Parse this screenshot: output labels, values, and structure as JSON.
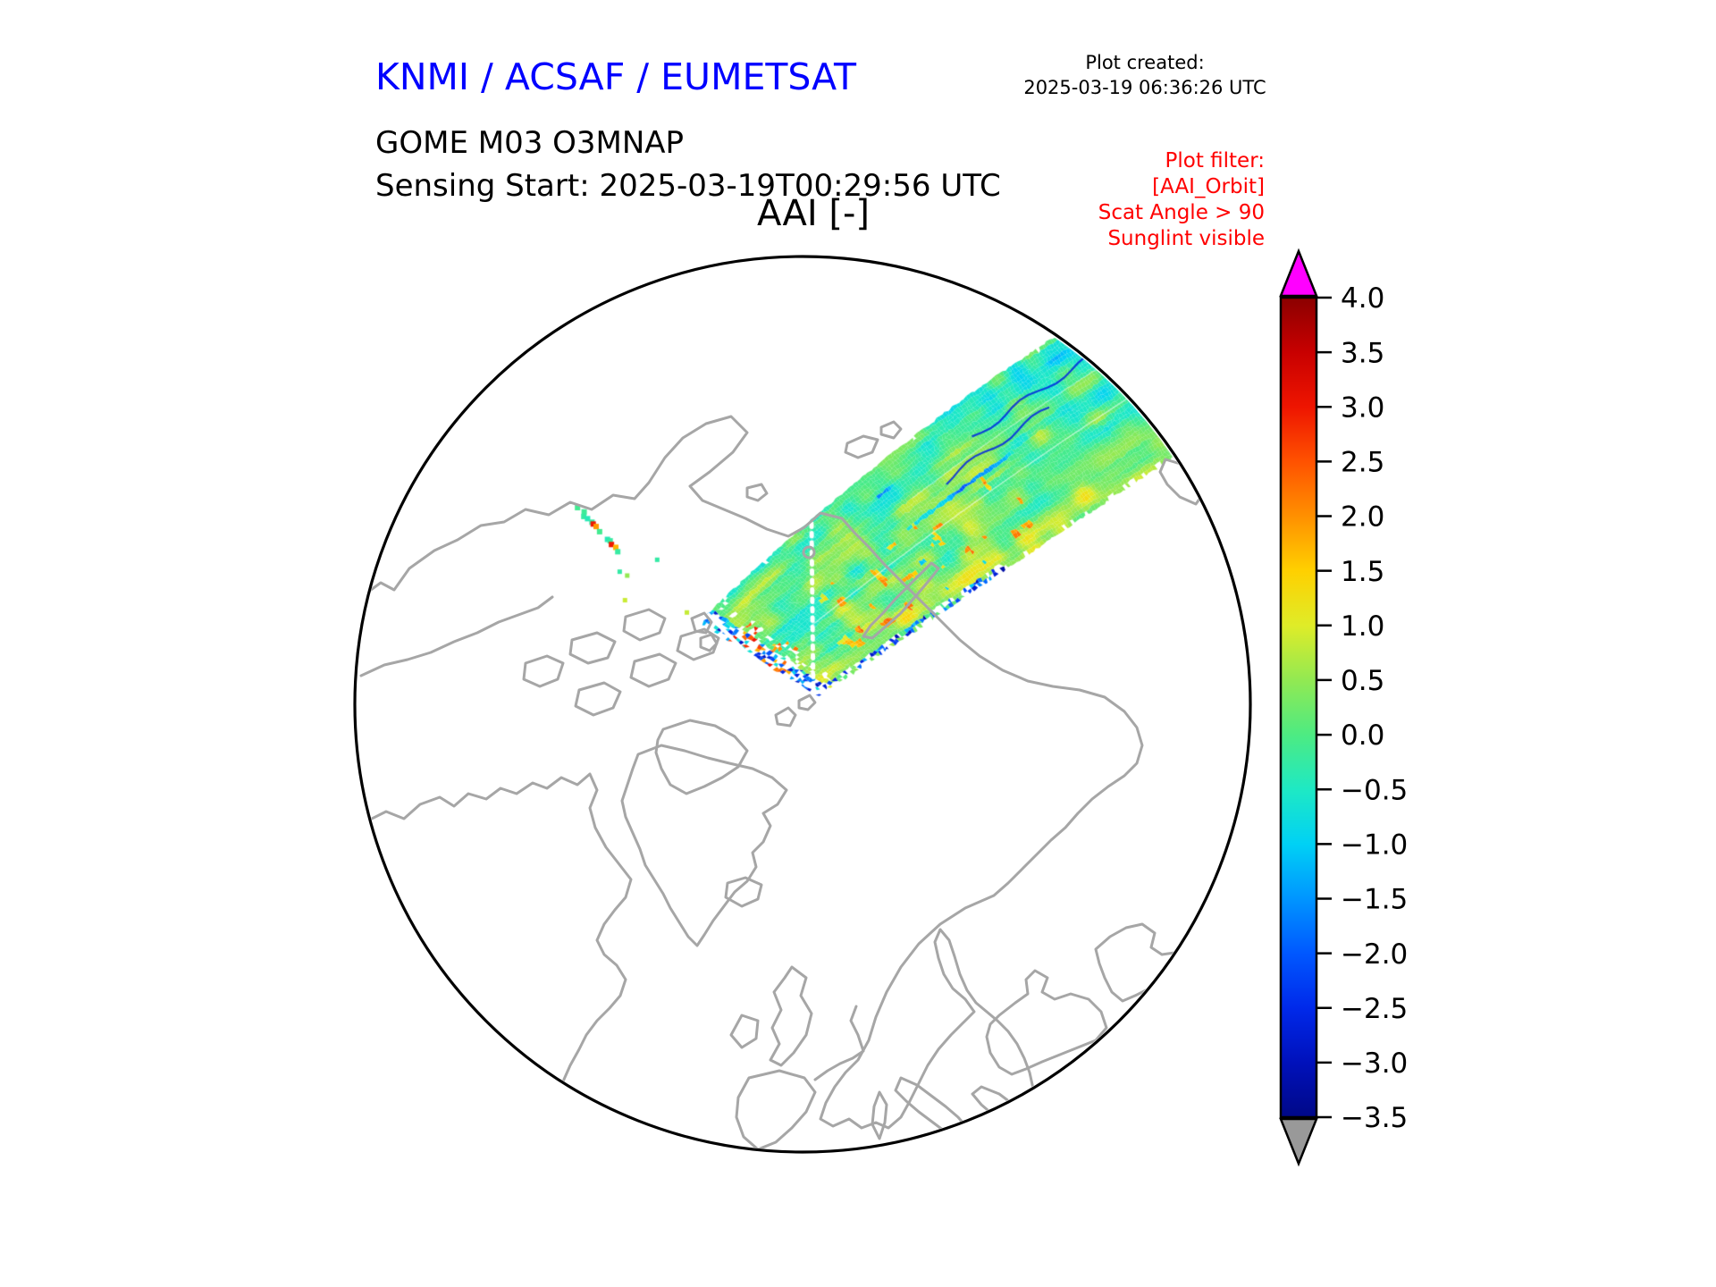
{
  "header": {
    "organization": "KNMI / ACSAF / EUMETSAT",
    "plot_created_label": "Plot created:",
    "plot_created_timestamp": "2025-03-19 06:36:26 UTC",
    "product_line1": "GOME M03 O3MNAP",
    "product_line2": "Sensing Start: 2025-03-19T00:29:56 UTC",
    "filter_lines": [
      "Plot filter:",
      "[AAI_Orbit]",
      "Scat Angle > 90",
      "Sunglint visible"
    ]
  },
  "colors": {
    "organization_title": "#0000ff",
    "filter_text": "#ff0000",
    "coastline": "#a6a6a6",
    "map_outline": "#000000",
    "swath_gap_white": "#ffffff"
  },
  "chart_data": {
    "type": "heatmap",
    "title": "AAI [-]",
    "units": "dimensionless index",
    "projection": "north polar view (pole centred circle, Europe at bottom)",
    "description": "Single GOME-2 (Metop) orbit swath of Absorbing Aerosol Index crossing the Arctic: scattered pixel tip near the pole (lower left of swath) extending north-east over the Siberian coast and Kara Sea, exiting the circular map edge at the upper right. Values are mostly green/teal near 0, yellow patches near 1, sparse orange-red streaks near 2-3, thin dark-blue streaks near -2 parallel to the orbit in the upper-right half, blue speckles along the lower tip edge, a white dotted meridian gap through the swath and two slanted white scan-gap lines near the tip.",
    "value_range": [
      -3.5,
      4.0
    ],
    "colorbar": {
      "orientation": "vertical",
      "over_color": "#ff00ff",
      "under_color": "#999999",
      "ticks": [
        {
          "value": 4.0,
          "label": "4.0"
        },
        {
          "value": 3.5,
          "label": "3.5"
        },
        {
          "value": 3.0,
          "label": "3.0"
        },
        {
          "value": 2.5,
          "label": "2.5"
        },
        {
          "value": 2.0,
          "label": "2.0"
        },
        {
          "value": 1.5,
          "label": "1.5"
        },
        {
          "value": 1.0,
          "label": "1.0"
        },
        {
          "value": 0.5,
          "label": "0.5"
        },
        {
          "value": 0.0,
          "label": "0.0"
        },
        {
          "value": -0.5,
          "label": "−0.5"
        },
        {
          "value": -1.0,
          "label": "−1.0"
        },
        {
          "value": -1.5,
          "label": "−1.5"
        },
        {
          "value": -2.0,
          "label": "−2.0"
        },
        {
          "value": -2.5,
          "label": "−2.5"
        },
        {
          "value": -3.0,
          "label": "−3.0"
        },
        {
          "value": -3.5,
          "label": "−3.5"
        }
      ],
      "gradient_stops": [
        [
          4.0,
          "#8b0000"
        ],
        [
          3.5,
          "#c80000"
        ],
        [
          3.0,
          "#ee1500"
        ],
        [
          2.5,
          "#ff5200"
        ],
        [
          2.0,
          "#ff9000"
        ],
        [
          1.5,
          "#ffd000"
        ],
        [
          1.0,
          "#dfec28"
        ],
        [
          0.5,
          "#92e952"
        ],
        [
          0.0,
          "#4deb82"
        ],
        [
          -0.5,
          "#1ee9c4"
        ],
        [
          -1.0,
          "#00d1f5"
        ],
        [
          -1.5,
          "#0095ff"
        ],
        [
          -2.0,
          "#0058ff"
        ],
        [
          -2.5,
          "#0029ea"
        ],
        [
          -3.0,
          "#0011bb"
        ],
        [
          -3.5,
          "#000887"
        ]
      ]
    }
  }
}
